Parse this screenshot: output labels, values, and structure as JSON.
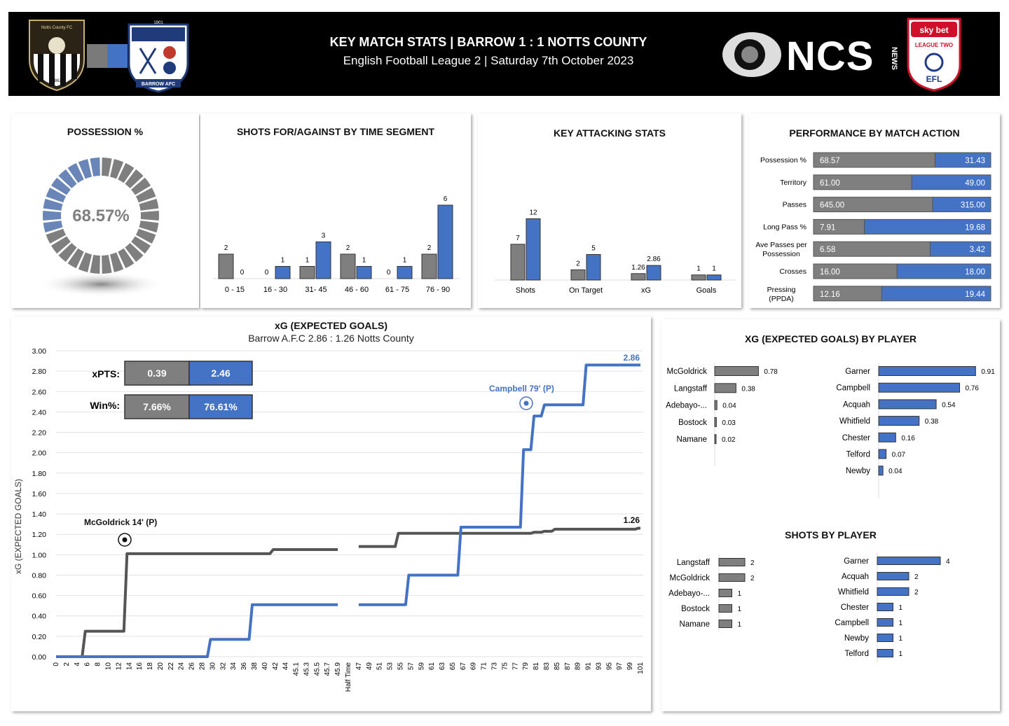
{
  "header": {
    "title": "KEY MATCH STATS | BARROW 1 : 1 NOTTS COUNTY",
    "subtitle": "English Football League 2 | Saturday 7th October 2023",
    "brand": "NCS",
    "brand_news": "NEWS",
    "notts_crest_text": "Notts County FC",
    "notts_crest_year": "1862",
    "barrow_crest_text": "BARROW AFC",
    "barrow_crest_year": "1901",
    "efl_top": "sky bet",
    "efl_mid": "LEAGUE TWO",
    "efl_bot": "EFL",
    "colors": {
      "notts": "#7a7a7a",
      "barrow": "#4472c4",
      "bg": "#000000"
    }
  },
  "possession": {
    "title": "POSSESSION %",
    "value": "68.57%",
    "chart_data": {
      "type": "pie",
      "values": [
        68.57,
        31.43
      ],
      "segments": 30
    }
  },
  "shots_segment": {
    "title": "SHOTS FOR/AGAINST BY TIME SEGMENT",
    "chart_data": {
      "type": "bar",
      "categories": [
        "0 - 15",
        "16 - 30",
        "31- 45",
        "46 - 60",
        "61 - 75",
        "76 - 90"
      ],
      "series": [
        {
          "values": [
            2,
            0,
            1,
            2,
            0,
            2
          ]
        },
        {
          "values": [
            0,
            1,
            3,
            1,
            1,
            6
          ]
        }
      ]
    }
  },
  "attacking": {
    "title": "KEY ATTACKING STATS",
    "chart_data": {
      "type": "bar",
      "categories": [
        "Shots",
        "On Target",
        "xG",
        "Goals"
      ],
      "series": [
        {
          "values": [
            7,
            2,
            1.26,
            1
          ],
          "labels": [
            "7",
            "2",
            "1.26",
            "1"
          ]
        },
        {
          "values": [
            12,
            5,
            2.86,
            1
          ],
          "labels": [
            "12",
            "5",
            "2.86",
            "1"
          ]
        }
      ]
    }
  },
  "performance": {
    "title": "PERFORMANCE BY MATCH ACTION",
    "chart_data": {
      "type": "bar",
      "rows": [
        {
          "label": "Possession %",
          "left": 68.57,
          "right": 31.43,
          "left_text": "68.57",
          "right_text": "31.43"
        },
        {
          "label": "Territory",
          "left": 61.0,
          "right": 49.0,
          "left_text": "61.00",
          "right_text": "49.00"
        },
        {
          "label": "Passes",
          "left": 645.0,
          "right": 315.0,
          "left_text": "645.00",
          "right_text": "315.00"
        },
        {
          "label": "Long Pass %",
          "left": 7.91,
          "right": 19.68,
          "left_text": "7.91",
          "right_text": "19.68"
        },
        {
          "label": "Ave Passes per Possession",
          "left": 6.58,
          "right": 3.42,
          "left_text": "6.58",
          "right_text": "3.42"
        },
        {
          "label": "Crosses",
          "left": 16.0,
          "right": 18.0,
          "left_text": "16.00",
          "right_text": "18.00"
        },
        {
          "label": "Pressing (PPDA)",
          "left": 12.16,
          "right": 19.44,
          "left_text": "12.16",
          "right_text": "19.44"
        }
      ]
    }
  },
  "xg": {
    "title": "xG (EXPECTED GOALS)",
    "subtitle": "Barrow A.F.C 2.86 : 1.26 Notts County",
    "ylabel": "xG (EXPECTED GOALS)",
    "xpts_label": "xPTS:",
    "xpts": [
      "0.39",
      "2.46"
    ],
    "win_label": "Win%:",
    "win": [
      "7.66%",
      "76.61%"
    ],
    "notts_final": "1.26",
    "barrow_final": "2.86",
    "annotation_notts": "McGoldrick 14' (P)",
    "annotation_barrow": "Campbell 79' (P)",
    "chart_data": {
      "type": "line",
      "ylim": [
        0,
        3
      ],
      "yticks": [
        "0.00",
        "0.20",
        "0.40",
        "0.60",
        "0.80",
        "1.00",
        "1.20",
        "1.40",
        "1.60",
        "1.80",
        "2.00",
        "2.20",
        "2.40",
        "2.60",
        "2.80",
        "3.00"
      ],
      "x": [
        "0",
        "2",
        "4",
        "6",
        "8",
        "10",
        "12",
        "14",
        "16",
        "18",
        "20",
        "22",
        "24",
        "26",
        "28",
        "30",
        "32",
        "34",
        "36",
        "38",
        "40",
        "42",
        "44",
        "45.1",
        "45.3",
        "45.5",
        "45.7",
        "45.9",
        "Half Time",
        "47",
        "49",
        "51",
        "53",
        "55",
        "57",
        "59",
        "61",
        "63",
        "65",
        "67",
        "69",
        "71",
        "73",
        "75",
        "77",
        "79",
        "81",
        "83",
        "85",
        "87",
        "89",
        "91",
        "93",
        "95",
        "97",
        "99",
        "101"
      ],
      "series": [
        {
          "values": [
            0,
            0,
            0,
            0.25,
            0.25,
            0.25,
            0.25,
            1.01,
            1.01,
            1.01,
            1.01,
            1.01,
            1.01,
            1.01,
            1.01,
            1.01,
            1.01,
            1.01,
            1.01,
            1.01,
            1.01,
            1.05,
            1.05,
            1.05,
            1.05,
            1.05,
            1.05,
            1.05,
            null,
            1.08,
            1.08,
            1.08,
            1.08,
            1.21,
            1.21,
            1.21,
            1.21,
            1.21,
            1.21,
            1.21,
            1.21,
            1.21,
            1.21,
            1.21,
            1.21,
            1.21,
            1.22,
            1.23,
            1.25,
            1.25,
            1.25,
            1.25,
            1.25,
            1.25,
            1.25,
            1.25,
            1.26
          ]
        },
        {
          "values": [
            0,
            0,
            0,
            0,
            0,
            0,
            0,
            0,
            0,
            0,
            0,
            0,
            0,
            0,
            0,
            0.17,
            0.17,
            0.17,
            0.17,
            0.51,
            0.51,
            0.51,
            0.51,
            0.51,
            0.51,
            0.51,
            0.51,
            0.51,
            null,
            0.51,
            0.51,
            0.51,
            0.51,
            0.51,
            0.8,
            0.8,
            0.8,
            0.8,
            0.8,
            1.27,
            1.27,
            1.27,
            1.27,
            1.27,
            1.27,
            2.03,
            2.36,
            2.47,
            2.47,
            2.47,
            2.47,
            2.86,
            2.86,
            2.86,
            2.86,
            2.86,
            2.86
          ]
        }
      ]
    }
  },
  "xg_player": {
    "title": "XG (EXPECTED GOALS) BY PLAYER",
    "chart_data": {
      "type": "bar",
      "notts": [
        {
          "name": "McGoldrick",
          "value": 0.78,
          "label": "0.78"
        },
        {
          "name": "Langstaff",
          "value": 0.38,
          "label": "0.38"
        },
        {
          "name": "Adebayo-...",
          "value": 0.04,
          "label": "0.04"
        },
        {
          "name": "Bostock",
          "value": 0.03,
          "label": "0.03"
        },
        {
          "name": "Namane",
          "value": 0.02,
          "label": "0.02"
        }
      ],
      "barrow": [
        {
          "name": "Garner",
          "value": 0.91,
          "label": "0.91"
        },
        {
          "name": "Campbell",
          "value": 0.76,
          "label": "0.76"
        },
        {
          "name": "Acquah",
          "value": 0.54,
          "label": "0.54"
        },
        {
          "name": "Whitfield",
          "value": 0.38,
          "label": "0.38"
        },
        {
          "name": "Chester",
          "value": 0.16,
          "label": "0.16"
        },
        {
          "name": "Telford",
          "value": 0.07,
          "label": "0.07"
        },
        {
          "name": "Newby",
          "value": 0.04,
          "label": "0.04"
        }
      ]
    }
  },
  "shots_player": {
    "title": "SHOTS BY PLAYER",
    "chart_data": {
      "type": "bar",
      "notts": [
        {
          "name": "Langstaff",
          "value": 2,
          "label": "2"
        },
        {
          "name": "McGoldrick",
          "value": 2,
          "label": "2"
        },
        {
          "name": "Adebayo-...",
          "value": 1,
          "label": "1"
        },
        {
          "name": "Bostock",
          "value": 1,
          "label": "1"
        },
        {
          "name": "Namane",
          "value": 1,
          "label": "1"
        }
      ],
      "barrow": [
        {
          "name": "Garner",
          "value": 4,
          "label": "4"
        },
        {
          "name": "Acquah",
          "value": 2,
          "label": "2"
        },
        {
          "name": "Whitfield",
          "value": 2,
          "label": "2"
        },
        {
          "name": "Chester",
          "value": 1,
          "label": "1"
        },
        {
          "name": "Campbell",
          "value": 1,
          "label": "1"
        },
        {
          "name": "Newby",
          "value": 1,
          "label": "1"
        },
        {
          "name": "Telford",
          "value": 1,
          "label": "1"
        }
      ]
    }
  }
}
